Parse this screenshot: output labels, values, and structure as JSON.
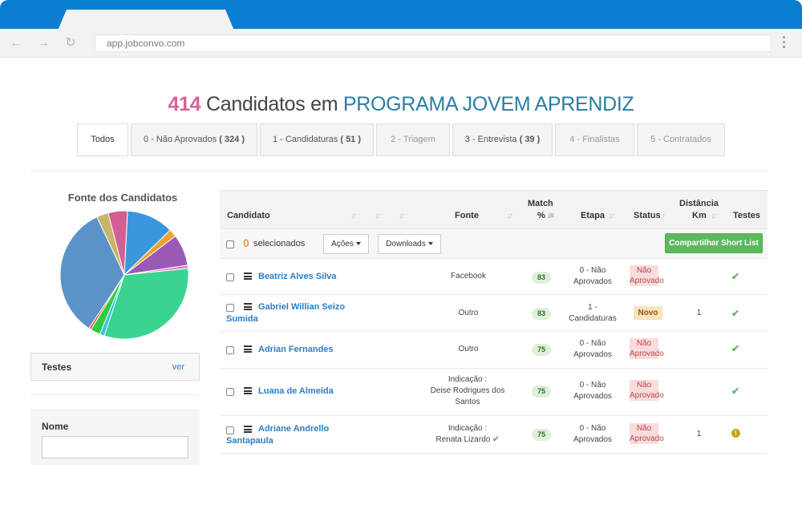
{
  "browser": {
    "url": "app.jobconvo.com"
  },
  "title": {
    "count": "414",
    "middle": "Candidatos em",
    "program": "PROGRAMA JOVEM APRENDIZ"
  },
  "stages": [
    {
      "label": "Todos",
      "count": ""
    },
    {
      "label": "0 - Não Aprovados",
      "count": "( 324 )"
    },
    {
      "label": "1 - Candidaturas",
      "count": "( 51 )"
    },
    {
      "label": "2 - Triagem",
      "count": ""
    },
    {
      "label": "3 - Entrevista",
      "count": "( 39 )"
    },
    {
      "label": "4 - Finalistas",
      "count": ""
    },
    {
      "label": "5 - Contratados",
      "count": ""
    }
  ],
  "sidebar": {
    "chart_title": "Fonte dos Candidatos",
    "tests_label": "Testes",
    "tests_link": "ver",
    "name_label": "Nome"
  },
  "chart_data": {
    "type": "pie",
    "title": "Fonte dos Candidatos",
    "slices": [
      {
        "value": 12,
        "color": "#3a97dc"
      },
      {
        "value": 2,
        "color": "#f0a130"
      },
      {
        "value": 8,
        "color": "#9b59b6"
      },
      {
        "value": 0.8,
        "color": "#e07cc0"
      },
      {
        "value": 32,
        "color": "#38d490"
      },
      {
        "value": 1.2,
        "color": "#3ac3e0"
      },
      {
        "value": 2.5,
        "color": "#2ecc40"
      },
      {
        "value": 0.6,
        "color": "#e74c3c"
      },
      {
        "value": 34,
        "color": "#5b93c8"
      },
      {
        "value": 3,
        "color": "#c8b46a"
      },
      {
        "value": 4.9,
        "color": "#d15f92"
      }
    ]
  },
  "table": {
    "headers": {
      "candidate": "Candidato",
      "source": "Fonte",
      "match_line1": "Match",
      "match_line2": "%",
      "stage": "Etapa",
      "status": "Status",
      "distance_line1": "Distância",
      "distance_line2": "Km",
      "tests": "Testes"
    },
    "toolbar": {
      "selected_count": "0",
      "selected_label": "selecionados",
      "actions": "Ações",
      "downloads": "Downloads",
      "share": "Compartilhar Short List"
    },
    "rows": [
      {
        "name": "Beatriz Alves Silva",
        "source": "Facebook",
        "match": "83",
        "stage": "0 - Não Aprovados",
        "stage_l1": "0 - Não",
        "stage_l2": "Aprovados",
        "status_l1": "Não",
        "status_l2": "Aprovado",
        "distance": "",
        "test": "ok"
      },
      {
        "name_l1": "Gabriel Willian Seizo",
        "name_l2": "Sumida",
        "source": "Outro",
        "match": "83",
        "stage_l1": "1 -",
        "stage_l2": "Candidaturas",
        "status_novo": "Novo",
        "distance": "1",
        "test": "ok"
      },
      {
        "name": "Adrian Fernandes",
        "source": "Outro",
        "match": "75",
        "stage_l1": "0 - Não",
        "stage_l2": "Aprovados",
        "status_l1": "Não",
        "status_l2": "Aprovado",
        "distance": "",
        "test": "ok"
      },
      {
        "name": "Luana de Almeida",
        "source_l1": "Indicação :",
        "source_l2": "Deise Rodrigues dos",
        "source_l3": "Santos",
        "match": "75",
        "stage_l1": "0 - Não",
        "stage_l2": "Aprovados",
        "status_l1": "Não",
        "status_l2": "Aprovado",
        "distance": "",
        "test": "ok"
      },
      {
        "name_l1": "Adriane Andrello",
        "name_l2": "Santapaula",
        "source_l1": "Indicação :",
        "source_l2": "Renata Lizardo",
        "match": "75",
        "stage_l1": "0 - Não",
        "stage_l2": "Aprovados",
        "status_l1": "Não",
        "status_l2": "Aprovado",
        "distance": "1",
        "test": "warn"
      }
    ]
  }
}
